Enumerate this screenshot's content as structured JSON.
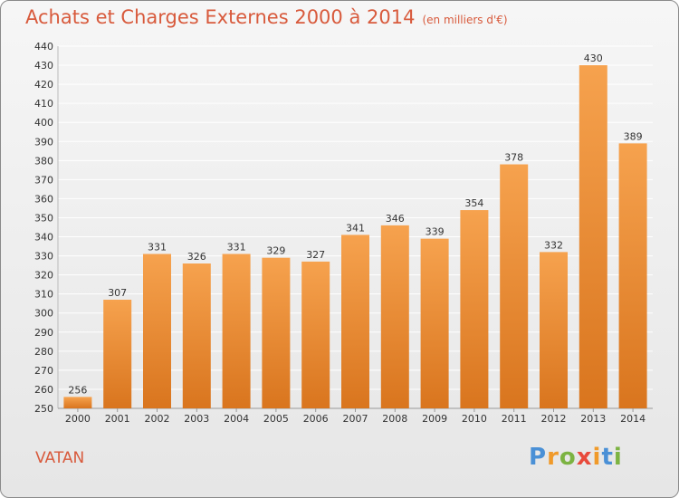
{
  "header": {
    "title": "Achats et Charges Externes 2000 à 2014",
    "subtitle": "(en milliers d'€)"
  },
  "footer": {
    "commune": "VATAN",
    "logo": "Proxiti"
  },
  "colors": {
    "bar_top": "#f6a24e",
    "bar_bottom": "#d9751e",
    "title": "#d85a3c",
    "grid": "#ffffff"
  },
  "chart_data": {
    "type": "bar",
    "title": "Achats et Charges Externes 2000 à 2014",
    "subtitle": "(en milliers d'€)",
    "xlabel": "",
    "ylabel": "",
    "categories": [
      "2000",
      "2001",
      "2002",
      "2003",
      "2004",
      "2005",
      "2006",
      "2007",
      "2008",
      "2009",
      "2010",
      "2011",
      "2012",
      "2013",
      "2014"
    ],
    "values": [
      256,
      307,
      331,
      326,
      331,
      329,
      327,
      341,
      346,
      339,
      354,
      378,
      332,
      430,
      389
    ],
    "ylim": [
      250,
      440
    ],
    "ytick_step": 10,
    "grid": true,
    "data_labels": true
  }
}
